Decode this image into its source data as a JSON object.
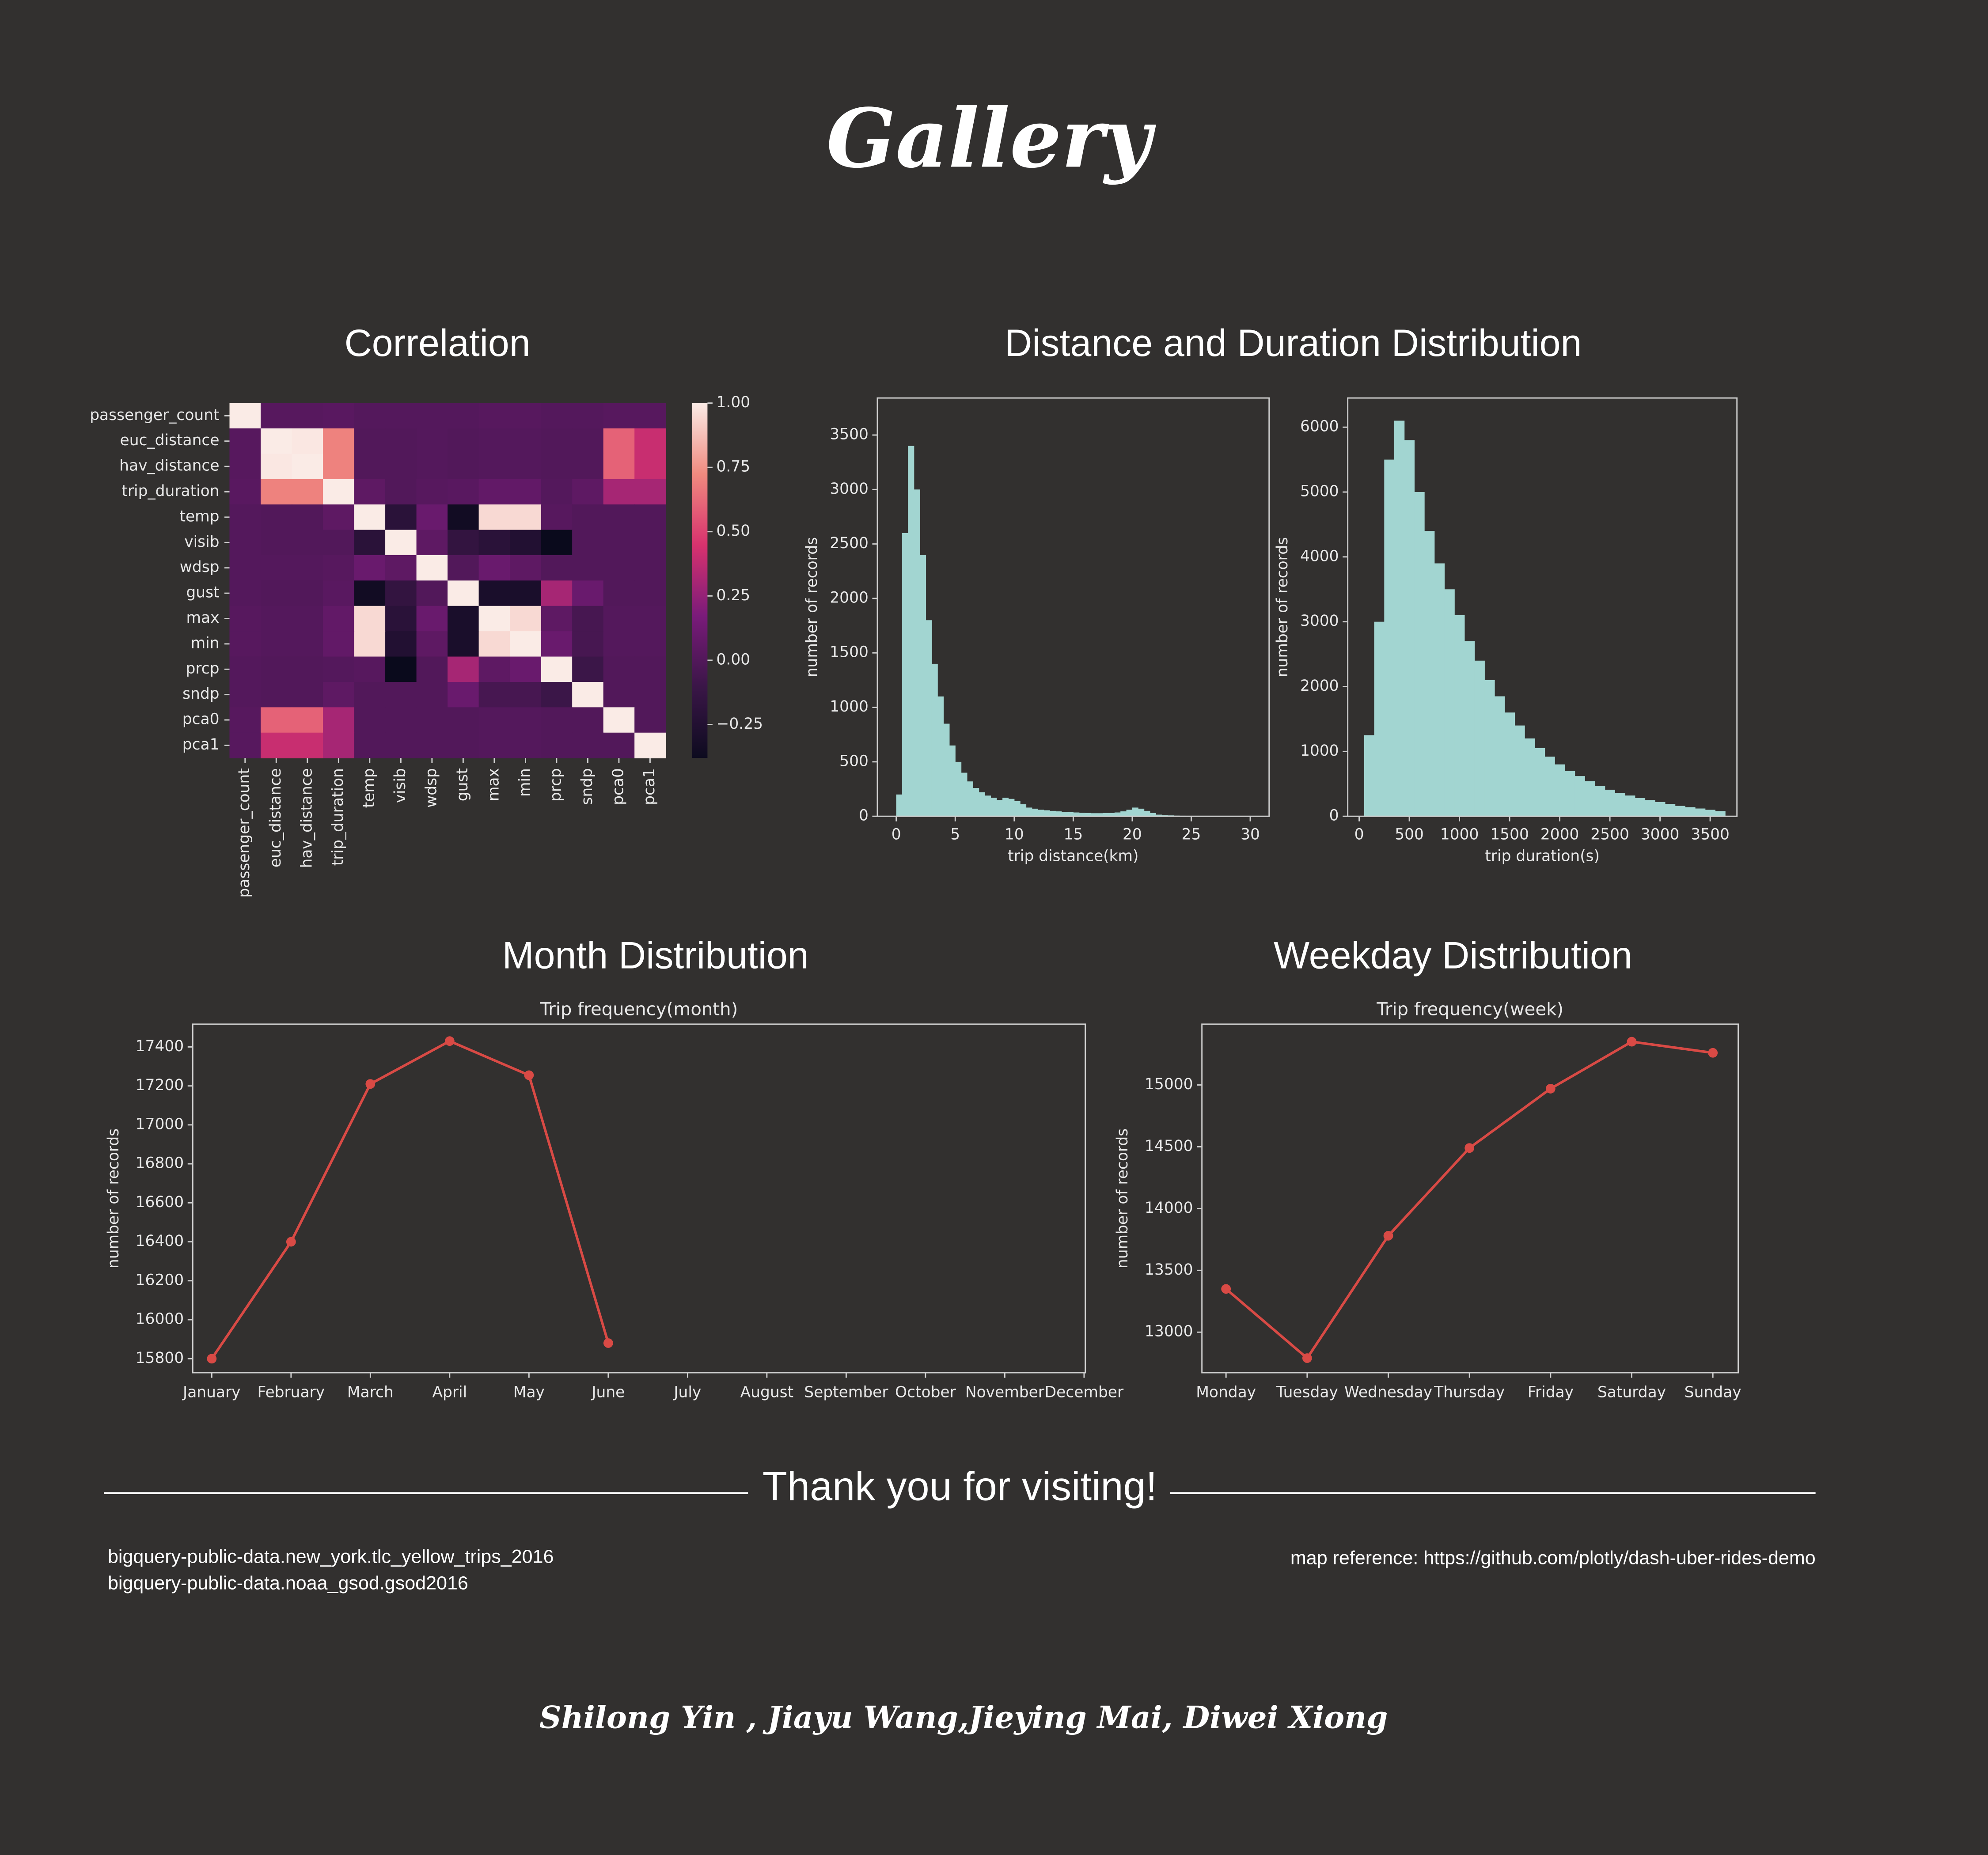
{
  "title": "Gallery",
  "sections": [
    "Correlation",
    "Distance and Duration Distribution",
    "Month Distribution",
    "Weekday Distribution"
  ],
  "chart_data": [
    {
      "type": "heatmap",
      "x": [
        "passenger_count",
        "euc_distance",
        "hav_distance",
        "trip_duration",
        "temp",
        "visib",
        "wdsp",
        "gust",
        "max",
        "min",
        "prcp",
        "sndp",
        "pca0",
        "pca1"
      ],
      "y": [
        "passenger_count",
        "euc_distance",
        "hav_distance",
        "trip_duration",
        "temp",
        "visib",
        "wdsp",
        "gust",
        "max",
        "min",
        "prcp",
        "sndp",
        "pca0",
        "pca1"
      ],
      "z": [
        [
          1,
          0.02,
          0.02,
          0.03,
          0.01,
          0.01,
          0.01,
          0.01,
          0.02,
          0.02,
          0.01,
          0.01,
          0.02,
          0.02
        ],
        [
          0.02,
          1,
          0.99,
          0.7,
          0,
          0,
          0.01,
          0,
          0.01,
          0.01,
          0,
          0,
          0.6,
          0.4
        ],
        [
          0.02,
          0.99,
          1,
          0.7,
          0,
          0,
          0.01,
          0,
          0.01,
          0.01,
          0,
          0,
          0.6,
          0.4
        ],
        [
          0.03,
          0.7,
          0.7,
          1,
          0.05,
          0,
          0.02,
          0.03,
          0.07,
          0.07,
          0.01,
          0.05,
          0.3,
          0.3
        ],
        [
          0.01,
          0,
          0,
          0.05,
          1,
          -0.2,
          0.1,
          -0.35,
          0.95,
          0.95,
          0.02,
          0,
          0,
          0
        ],
        [
          0.01,
          0,
          0,
          0,
          -0.2,
          1,
          0.05,
          -0.15,
          -0.2,
          -0.25,
          -0.4,
          0,
          0,
          0
        ],
        [
          0.01,
          0.01,
          0.01,
          0.02,
          0.1,
          0.05,
          1,
          0,
          0.1,
          0.05,
          0,
          0,
          0,
          0
        ],
        [
          0.01,
          0,
          0,
          0.03,
          -0.35,
          -0.15,
          0,
          1,
          -0.3,
          -0.3,
          0.3,
          0.1,
          0,
          0
        ],
        [
          0.02,
          0.01,
          0.01,
          0.07,
          0.95,
          -0.2,
          0.1,
          -0.3,
          1,
          0.95,
          0.05,
          -0.05,
          0.01,
          0.01
        ],
        [
          0.02,
          0.01,
          0.01,
          0.07,
          0.95,
          -0.25,
          0.05,
          -0.3,
          0.95,
          1,
          0.1,
          -0.05,
          0.01,
          0.01
        ],
        [
          0.01,
          0,
          0,
          0.01,
          0.02,
          -0.4,
          0,
          0.3,
          0.05,
          0.1,
          1,
          -0.1,
          0,
          0
        ],
        [
          0.01,
          0,
          0,
          0.05,
          0,
          0,
          0,
          0.1,
          -0.05,
          -0.05,
          -0.1,
          1,
          0,
          0
        ],
        [
          0.02,
          0.6,
          0.6,
          0.3,
          0,
          0,
          0,
          0,
          0.01,
          0.01,
          0,
          0,
          1,
          0
        ],
        [
          0.02,
          0.4,
          0.4,
          0.3,
          0,
          0,
          0,
          0,
          0.01,
          0.01,
          0,
          0,
          0,
          1
        ]
      ],
      "zlim": [
        -0.38,
        1
      ],
      "zticks": [
        {
          "value": 1,
          "label": "1.00"
        },
        {
          "value": 0.75,
          "label": "0.75"
        },
        {
          "value": 0.5,
          "label": "0.50"
        },
        {
          "value": 0.25,
          "label": "0.25"
        },
        {
          "value": 0,
          "label": "0.00"
        },
        {
          "value": -0.25,
          "label": "−0.25"
        }
      ],
      "colorscale": [
        "#0d0b1f",
        "#3a1647",
        "#7a1b7a",
        "#d8326e",
        "#f08a7f",
        "#faebe6"
      ]
    },
    {
      "type": "histogram",
      "color": "#a2d5d1",
      "xlabel": "trip distance(km)",
      "ylabel": "number of records",
      "bins": [
        0,
        0.5,
        1,
        1.5,
        2,
        2.5,
        3,
        3.5,
        4,
        4.5,
        5,
        5.5,
        6,
        6.5,
        7,
        7.5,
        8,
        8.5,
        9,
        9.5,
        10,
        10.5,
        11,
        11.5,
        12,
        12.5,
        13,
        13.5,
        14,
        14.5,
        15,
        15.5,
        16,
        16.5,
        17,
        17.5,
        18,
        18.5,
        19,
        19.5,
        20,
        20.5,
        21,
        21.5,
        22,
        22.5,
        23,
        23.5,
        24,
        24.5,
        25
      ],
      "counts": [
        200,
        2600,
        3400,
        3000,
        2400,
        1800,
        1400,
        1100,
        850,
        650,
        500,
        400,
        320,
        260,
        220,
        190,
        170,
        150,
        170,
        160,
        140,
        110,
        80,
        70,
        60,
        55,
        50,
        45,
        40,
        38,
        35,
        32,
        30,
        28,
        28,
        30,
        30,
        35,
        45,
        60,
        80,
        70,
        50,
        30,
        15,
        10,
        8,
        6,
        5,
        4
      ],
      "xlim": [
        -1.6,
        31.6
      ],
      "xticks": [
        0,
        5,
        10,
        15,
        20,
        25,
        30
      ],
      "ylim": [
        0,
        3840
      ],
      "yticks": [
        0,
        500,
        1000,
        1500,
        2000,
        2500,
        3000,
        3500
      ]
    },
    {
      "type": "histogram",
      "color": "#a2d5d1",
      "xlabel": "trip duration(s)",
      "ylabel": "number of records",
      "bins": [
        50,
        150,
        250,
        350,
        450,
        550,
        650,
        750,
        850,
        950,
        1050,
        1150,
        1250,
        1350,
        1450,
        1550,
        1650,
        1750,
        1850,
        1950,
        2050,
        2150,
        2250,
        2350,
        2450,
        2550,
        2650,
        2750,
        2850,
        2950,
        3050,
        3150,
        3250,
        3350,
        3450,
        3550,
        3650
      ],
      "counts": [
        1250,
        3000,
        5500,
        6100,
        5800,
        5000,
        4400,
        3900,
        3500,
        3100,
        2700,
        2400,
        2100,
        1850,
        1600,
        1400,
        1200,
        1050,
        920,
        800,
        700,
        620,
        540,
        470,
        410,
        360,
        320,
        280,
        250,
        220,
        190,
        160,
        140,
        120,
        100,
        80
      ],
      "xlim": [
        -114,
        3767
      ],
      "xticks": [
        0,
        500,
        1000,
        1500,
        2000,
        2500,
        3000,
        3500
      ],
      "ylim": [
        0,
        6450
      ],
      "yticks": [
        0,
        1000,
        2000,
        3000,
        4000,
        5000,
        6000
      ]
    },
    {
      "type": "line",
      "title": "Trip frequency(month)",
      "ylabel": "number of records",
      "color": "#d94a45",
      "categories": [
        "January",
        "February",
        "March",
        "April",
        "May",
        "June",
        "July",
        "August",
        "September",
        "October",
        "November",
        "December"
      ],
      "values": [
        15800,
        16400,
        17210,
        17430,
        17255,
        15880,
        null,
        null,
        null,
        null,
        null,
        null
      ],
      "ylim": [
        15728,
        17517
      ],
      "yticks": [
        15800,
        16000,
        16200,
        16400,
        16600,
        16800,
        17000,
        17200,
        17400
      ]
    },
    {
      "type": "line",
      "title": "Trip frequency(week)",
      "ylabel": "number of records",
      "color": "#d94a45",
      "categories": [
        "Monday",
        "Tuesday",
        "Wednesday",
        "Thursday",
        "Friday",
        "Saturday",
        "Sunday"
      ],
      "values": [
        13350,
        12790,
        13780,
        14490,
        14970,
        15350,
        15260
      ],
      "ylim": [
        12672,
        15492
      ],
      "yticks": [
        13000,
        13500,
        14000,
        14500,
        15000
      ]
    }
  ],
  "footer": {
    "heading": "Thank you for visiting!",
    "sources": [
      "bigquery-public-data.new_york.tlc_yellow_trips_2016",
      "bigquery-public-data.noaa_gsod.gsod2016"
    ],
    "reference": "map reference: https://github.com/plotly/dash-uber-rides-demo",
    "authors": "Shilong Yin , Jiayu Wang,Jieying Mai, Diwei Xiong"
  }
}
